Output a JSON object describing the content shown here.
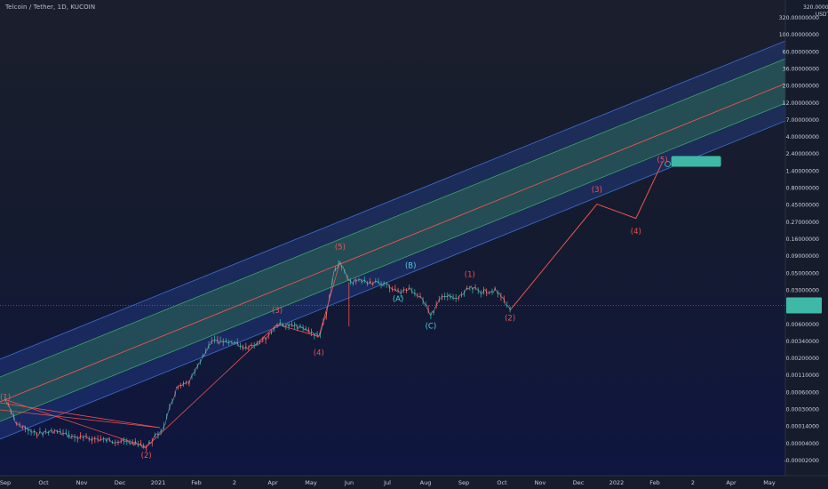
{
  "header": {
    "title": "Telcoin / Tether, 1D, KUCOIN",
    "unit_top": "320.00000000",
    "unit_bottom": "USDT"
  },
  "chart_data": {
    "type": "line",
    "title": "Telcoin / Tether, 1D, KUCOIN",
    "price_scale": "log",
    "y_tick_labels": [
      "320.00000000",
      "100.00000000",
      "60.00000000",
      "36.00000000",
      "20.00000000",
      "12.00000000",
      "7.00000000",
      "4.00000000",
      "2.40000000",
      "1.40000000",
      "0.80000000",
      "0.45000000",
      "0.27000000",
      "0.16000000",
      "0.09000000",
      "0.05000000",
      "0.03000000",
      "0.01000000",
      "0.00600000",
      "0.00340000",
      "0.00200000",
      "0.00110000",
      "0.00060000",
      "0.00030000",
      "0.00014000",
      "0.00004000",
      "-0.00002000"
    ],
    "x_tick_labels": [
      "Sep",
      "Oct",
      "Nov",
      "Dec",
      "2021",
      "Feb",
      "2",
      "Apr",
      "May",
      "Jun",
      "Jul",
      "Aug",
      "Sep",
      "Oct",
      "Nov",
      "Dec",
      "2022",
      "Feb",
      "2",
      "Apr",
      "May"
    ],
    "current_price_label": "",
    "target_label": "",
    "price_series": [
      [
        "2020-09-01",
        0.00062
      ],
      [
        "2020-09-10",
        0.00028
      ],
      [
        "2020-09-25",
        0.0002
      ],
      [
        "2020-10-10",
        0.00022
      ],
      [
        "2020-10-25",
        0.00018
      ],
      [
        "2020-11-10",
        0.00017
      ],
      [
        "2020-11-25",
        0.00016
      ],
      [
        "2020-12-10",
        0.00015
      ],
      [
        "2020-12-22",
        0.00013
      ],
      [
        "2021-01-05",
        0.00025
      ],
      [
        "2021-01-15",
        0.0009
      ],
      [
        "2021-01-25",
        0.0011
      ],
      [
        "2021-02-05",
        0.0025
      ],
      [
        "2021-02-12",
        0.0045
      ],
      [
        "2021-02-20",
        0.004
      ],
      [
        "2021-03-01",
        0.0042
      ],
      [
        "2021-03-10",
        0.0035
      ],
      [
        "2021-03-20",
        0.004
      ],
      [
        "2021-03-28",
        0.005
      ],
      [
        "2021-04-05",
        0.0075
      ],
      [
        "2021-04-20",
        0.007
      ],
      [
        "2021-05-01",
        0.006
      ],
      [
        "2021-05-08",
        0.005
      ],
      [
        "2021-05-14",
        0.01
      ],
      [
        "2021-05-20",
        0.04
      ],
      [
        "2021-05-25",
        0.06
      ],
      [
        "2021-06-01",
        0.03
      ],
      [
        "2021-06-10",
        0.032
      ],
      [
        "2021-06-20",
        0.03
      ],
      [
        "2021-07-01",
        0.028
      ],
      [
        "2021-07-10",
        0.022
      ],
      [
        "2021-07-20",
        0.024
      ],
      [
        "2021-08-01",
        0.015
      ],
      [
        "2021-08-05",
        0.01
      ],
      [
        "2021-08-15",
        0.02
      ],
      [
        "2021-08-25",
        0.017
      ],
      [
        "2021-09-05",
        0.025
      ],
      [
        "2021-09-15",
        0.022
      ],
      [
        "2021-09-25",
        0.023
      ],
      [
        "2021-10-01",
        0.018
      ],
      [
        "2021-10-07",
        0.012
      ]
    ],
    "projection": [
      [
        "2021-10-07",
        0.012
      ],
      [
        "2021-12-15",
        0.4
      ],
      [
        "2022-01-15",
        0.25
      ],
      [
        "2022-02-05",
        1.6
      ]
    ],
    "wave_labels": [
      {
        "text": "(1)",
        "date": "2020-09-01",
        "price": 0.00062,
        "color": "#ef5350"
      },
      {
        "text": "(2)",
        "date": "2020-12-22",
        "price": 9e-05,
        "color": "#ef5350"
      },
      {
        "text": "(3)",
        "date": "2021-04-05",
        "price": 0.011,
        "color": "#ef5350"
      },
      {
        "text": "(4)",
        "date": "2021-05-08",
        "price": 0.0027,
        "color": "#ef5350"
      },
      {
        "text": "(5)",
        "date": "2021-05-25",
        "price": 0.09,
        "color": "#ef5350"
      },
      {
        "text": "(A)",
        "date": "2021-07-10",
        "price": 0.016,
        "color": "#4dd0e1"
      },
      {
        "text": "(B)",
        "date": "2021-07-20",
        "price": 0.048,
        "color": "#4dd0e1"
      },
      {
        "text": "(C)",
        "date": "2021-08-05",
        "price": 0.0065,
        "color": "#4dd0e1"
      },
      {
        "text": "(1)",
        "date": "2021-09-05",
        "price": 0.036,
        "color": "#ef5350"
      },
      {
        "text": "(2)",
        "date": "2021-10-07",
        "price": 0.0085,
        "color": "#ef5350"
      },
      {
        "text": "(3)",
        "date": "2021-12-15",
        "price": 0.6,
        "color": "#ef5350"
      },
      {
        "text": "(4)",
        "date": "2022-01-15",
        "price": 0.15,
        "color": "#ef5350"
      },
      {
        "text": "(5)",
        "date": "2022-02-05",
        "price": 1.6,
        "color": "#ef5350"
      }
    ],
    "colors": {
      "outer_band": "#3a67c8",
      "inner_band": "#3aa36a",
      "trend_line": "#ef5350",
      "candles_up": "#26a69a",
      "candles_down": "#ef5350",
      "current_price_box": "#3fb8a8",
      "label_teal": "#4dd0e1"
    }
  }
}
